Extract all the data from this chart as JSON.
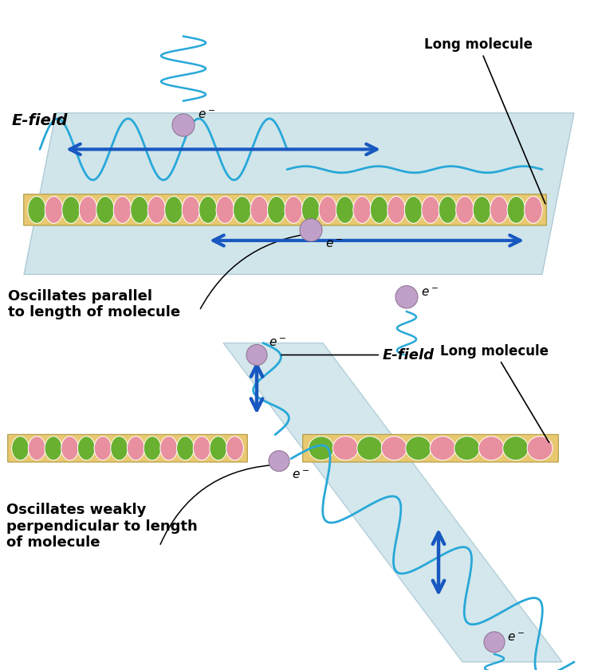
{
  "bg_color": "#ffffff",
  "panel_bg": "#b8d8e0",
  "molecule_fill": "#e8c870",
  "green_ring": "#6ab030",
  "pink_oval": "#e890a0",
  "arrow_color": "#1858c0",
  "wave_color": "#28a8d8",
  "electron_color": "#c0a0c8",
  "electron_edge": "#907898",
  "panel1_label": "E-field",
  "panel1_caption": "Oscillates parallel\nto length of molecule",
  "panel1_mol_label": "Long molecule",
  "panel2_label": "E-field",
  "panel2_caption": "Oscillates weakly\nperpendicular to length\nof molecule",
  "panel2_mol_label": "Long molecule"
}
